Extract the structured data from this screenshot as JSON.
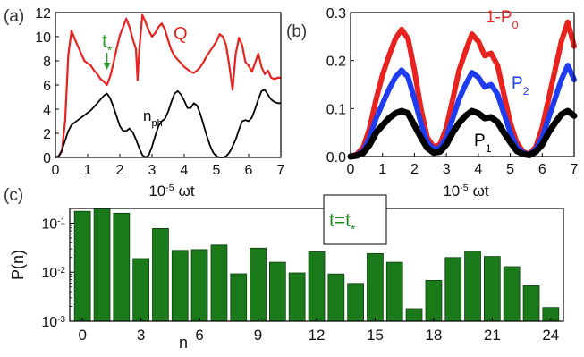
{
  "chart_data": [
    {
      "panel": "(a)",
      "type": "line",
      "xlabel": "10^-5 ωt",
      "xlabel_parts": {
        "base": "10",
        "exp": "-5",
        "var": "ωt"
      },
      "xlim": [
        0,
        7
      ],
      "ylim": [
        0,
        12
      ],
      "xticks": [
        0,
        1,
        2,
        3,
        4,
        5,
        6,
        7
      ],
      "yticks": [
        0,
        2,
        4,
        6,
        8,
        10,
        12
      ],
      "series": [
        {
          "name": "Q",
          "color": "#e8231f",
          "x": [
            0,
            0.1,
            0.2,
            0.3,
            0.4,
            0.5,
            0.6,
            0.7,
            0.8,
            0.9,
            1.0,
            1.1,
            1.2,
            1.3,
            1.4,
            1.5,
            1.6,
            1.7,
            1.8,
            1.9,
            2.0,
            2.1,
            2.2,
            2.3,
            2.4,
            2.5,
            2.55,
            2.6,
            2.7,
            2.8,
            2.9,
            3.0,
            3.1,
            3.2,
            3.3,
            3.4,
            3.5,
            3.6,
            3.7,
            3.8,
            3.9,
            4.0,
            4.1,
            4.2,
            4.3,
            4.4,
            4.5,
            4.6,
            4.7,
            4.8,
            4.9,
            5.0,
            5.1,
            5.2,
            5.3,
            5.4,
            5.5,
            5.6,
            5.7,
            5.8,
            5.9,
            6.0,
            6.1,
            6.2,
            6.3,
            6.4,
            6.5,
            6.6,
            6.7,
            6.8,
            6.9,
            7.0
          ],
          "y": [
            0,
            0.1,
            0.5,
            3.0,
            8.5,
            10.5,
            9.8,
            9.2,
            8.6,
            8.0,
            7.8,
            7.6,
            7.2,
            6.9,
            6.5,
            6.3,
            6.0,
            6.7,
            7.8,
            9.0,
            10.1,
            10.8,
            11.5,
            10.8,
            9.8,
            9.0,
            6.4,
            8.8,
            11.8,
            11.2,
            10.5,
            10.0,
            10.3,
            10.8,
            11.1,
            10.6,
            9.7,
            8.9,
            8.4,
            8.1,
            7.8,
            7.5,
            7.3,
            7.1,
            7.0,
            7.2,
            7.5,
            7.9,
            8.4,
            8.8,
            9.2,
            9.6,
            10.2,
            10.0,
            9.3,
            7.6,
            5.6,
            8.6,
            9.9,
            9.3,
            7.9,
            7.6,
            7.1,
            7.8,
            8.6,
            7.5,
            6.9,
            7.2,
            6.6,
            6.5,
            6.6,
            6.6
          ]
        },
        {
          "name": "n_ph",
          "color": "#000000",
          "x": [
            0,
            0.1,
            0.2,
            0.3,
            0.4,
            0.5,
            0.6,
            0.7,
            0.8,
            0.9,
            1.0,
            1.1,
            1.2,
            1.3,
            1.4,
            1.5,
            1.6,
            1.7,
            1.8,
            1.9,
            2.0,
            2.1,
            2.2,
            2.3,
            2.4,
            2.5,
            2.6,
            2.7,
            2.8,
            2.9,
            3.0,
            3.1,
            3.2,
            3.3,
            3.4,
            3.5,
            3.6,
            3.7,
            3.8,
            3.9,
            4.0,
            4.1,
            4.2,
            4.3,
            4.4,
            4.5,
            4.6,
            4.7,
            4.8,
            4.9,
            5.0,
            5.1,
            5.2,
            5.3,
            5.4,
            5.5,
            5.6,
            5.7,
            5.8,
            5.9,
            6.0,
            6.1,
            6.2,
            6.3,
            6.4,
            6.5,
            6.6,
            6.7,
            6.8,
            6.9,
            7.0
          ],
          "y": [
            0,
            0.1,
            0.6,
            1.4,
            2.2,
            2.7,
            2.9,
            3.1,
            3.3,
            3.5,
            3.7,
            3.9,
            4.2,
            4.5,
            4.8,
            5.1,
            5.3,
            4.9,
            4.2,
            3.4,
            2.6,
            2.2,
            2.2,
            2.4,
            2.1,
            1.5,
            0.8,
            0.2,
            0.0,
            0.2,
            0.9,
            1.8,
            2.6,
            3.0,
            3.2,
            3.8,
            4.6,
            5.3,
            5.5,
            5.2,
            4.7,
            4.1,
            4.1,
            4.5,
            4.3,
            3.6,
            2.7,
            1.8,
            1.0,
            0.4,
            0.1,
            0.0,
            0.0,
            0.1,
            0.4,
            0.9,
            1.5,
            2.3,
            3.0,
            3.1,
            3.0,
            3.3,
            4.0,
            4.8,
            5.5,
            5.6,
            5.2,
            4.8,
            4.6,
            4.5,
            4.5
          ]
        }
      ],
      "annotations": [
        {
          "text": "t",
          "sub": "*",
          "x": 1.6,
          "y": 5.3,
          "color": "#2ca02c"
        }
      ],
      "labels": {
        "Q": "Q",
        "nph_base": "n",
        "nph_sub": "ph",
        "tstar_base": "t",
        "tstar_sub": "*"
      }
    },
    {
      "panel": "(b)",
      "type": "line",
      "xlabel": "10^-5 ωt",
      "xlabel_parts": {
        "base": "10",
        "exp": "-5",
        "var": "ωt"
      },
      "xlim": [
        0,
        7
      ],
      "ylim": [
        0,
        0.3
      ],
      "xticks": [
        0,
        1,
        2,
        3,
        4,
        5,
        6,
        7
      ],
      "yticks": [
        0.0,
        0.1,
        0.2,
        0.3
      ],
      "ytick_labels": [
        "0.0",
        "0.1",
        "0.2",
        "0.3"
      ],
      "series": [
        {
          "name": "1-P_0",
          "label_base": "1-P",
          "label_sub": "0",
          "color": "#e8231f",
          "x": [
            0,
            0.2,
            0.4,
            0.6,
            0.8,
            1.0,
            1.2,
            1.4,
            1.6,
            1.8,
            2.0,
            2.2,
            2.4,
            2.6,
            2.8,
            3.0,
            3.2,
            3.4,
            3.6,
            3.8,
            4.0,
            4.2,
            4.4,
            4.6,
            4.8,
            5.0,
            5.2,
            5.4,
            5.6,
            5.8,
            6.0,
            6.2,
            6.4,
            6.6,
            6.8,
            7.0
          ],
          "y": [
            0.0,
            0.005,
            0.02,
            0.06,
            0.12,
            0.17,
            0.21,
            0.245,
            0.265,
            0.245,
            0.18,
            0.1,
            0.04,
            0.02,
            0.025,
            0.06,
            0.12,
            0.18,
            0.22,
            0.255,
            0.24,
            0.21,
            0.215,
            0.19,
            0.13,
            0.07,
            0.03,
            0.01,
            0.005,
            0.02,
            0.06,
            0.12,
            0.18,
            0.24,
            0.28,
            0.23
          ]
        },
        {
          "name": "P_2",
          "label_base": "P",
          "label_sub": "2",
          "color": "#1f3df0",
          "x": [
            0,
            0.2,
            0.4,
            0.6,
            0.8,
            1.0,
            1.2,
            1.4,
            1.6,
            1.8,
            2.0,
            2.2,
            2.4,
            2.6,
            2.8,
            3.0,
            3.2,
            3.4,
            3.6,
            3.8,
            4.0,
            4.2,
            4.4,
            4.6,
            4.8,
            5.0,
            5.2,
            5.4,
            5.6,
            5.8,
            6.0,
            6.2,
            6.4,
            6.6,
            6.8,
            7.0
          ],
          "y": [
            0.0,
            0.003,
            0.012,
            0.04,
            0.08,
            0.11,
            0.14,
            0.165,
            0.18,
            0.165,
            0.12,
            0.07,
            0.03,
            0.015,
            0.018,
            0.04,
            0.08,
            0.12,
            0.15,
            0.175,
            0.165,
            0.145,
            0.15,
            0.13,
            0.09,
            0.05,
            0.02,
            0.008,
            0.004,
            0.015,
            0.04,
            0.08,
            0.12,
            0.16,
            0.19,
            0.16
          ]
        },
        {
          "name": "P_1",
          "label_base": "P",
          "label_sub": "1",
          "color": "#000000",
          "x": [
            0,
            0.2,
            0.4,
            0.6,
            0.8,
            1.0,
            1.2,
            1.4,
            1.6,
            1.8,
            2.0,
            2.2,
            2.4,
            2.6,
            2.8,
            3.0,
            3.2,
            3.4,
            3.6,
            3.8,
            4.0,
            4.2,
            4.4,
            4.6,
            4.8,
            5.0,
            5.2,
            5.4,
            5.6,
            5.8,
            6.0,
            6.2,
            6.4,
            6.6,
            6.8,
            7.0
          ],
          "y": [
            0.0,
            0.002,
            0.008,
            0.025,
            0.05,
            0.065,
            0.08,
            0.09,
            0.095,
            0.09,
            0.065,
            0.04,
            0.018,
            0.008,
            0.01,
            0.025,
            0.05,
            0.07,
            0.085,
            0.095,
            0.09,
            0.08,
            0.082,
            0.072,
            0.05,
            0.03,
            0.012,
            0.005,
            0.003,
            0.01,
            0.025,
            0.05,
            0.07,
            0.088,
            0.095,
            0.085
          ]
        }
      ]
    },
    {
      "panel": "(c)",
      "type": "bar",
      "xlabel": "n",
      "ylabel": "P(n)",
      "yscale": "log",
      "ylim": [
        0.001,
        0.2
      ],
      "yticks": [
        {
          "value": 0.1,
          "base": "10",
          "exp": "-1"
        },
        {
          "value": 0.01,
          "base": "10",
          "exp": "-2"
        },
        {
          "value": 0.001,
          "base": "10",
          "exp": "-3"
        }
      ],
      "xticks": [
        0,
        3,
        6,
        9,
        12,
        15,
        18,
        21,
        24
      ],
      "color": "#1a7a1a",
      "categories": [
        0,
        1,
        2,
        3,
        4,
        5,
        6,
        7,
        8,
        9,
        10,
        11,
        12,
        13,
        14,
        15,
        16,
        17,
        18,
        19,
        20,
        21,
        22,
        23,
        24
      ],
      "values": [
        0.175,
        0.2,
        0.16,
        0.019,
        0.078,
        0.028,
        0.029,
        0.036,
        0.0093,
        0.031,
        0.016,
        0.0097,
        0.026,
        0.0092,
        0.0059,
        0.024,
        0.016,
        0.0018,
        0.0068,
        0.02,
        0.027,
        0.021,
        0.013,
        0.0053,
        0.0019
      ],
      "inset_label": {
        "base": "t=t",
        "sub": "*"
      }
    }
  ]
}
